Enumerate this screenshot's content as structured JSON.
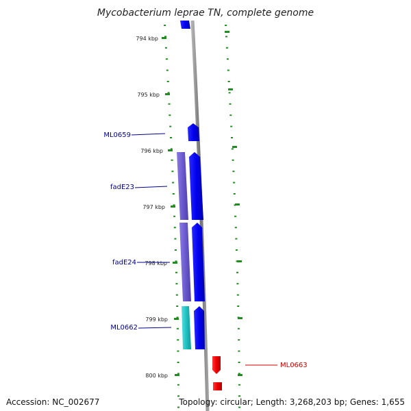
{
  "title": "Mycobacterium leprae TN, complete genome",
  "ticks": [
    "794 kbp",
    "795 kbp",
    "796 kbp",
    "797 kbp",
    "798 kbp",
    "799 kbp",
    "800 kbp"
  ],
  "genes": [
    {
      "name": "ML0659",
      "strand": "forward",
      "color": "#0000ee"
    },
    {
      "name": "fadE23",
      "strand": "forward",
      "color": "#0000ee"
    },
    {
      "name": "fadE24",
      "strand": "forward",
      "color": "#0000ee"
    },
    {
      "name": "ML0662",
      "strand": "forward",
      "color": "#0000ee"
    },
    {
      "name": "ML0663",
      "strand": "reverse",
      "color": "#ee0000"
    }
  ],
  "colors": {
    "forward_cds": "#0000ee",
    "reverse_cds": "#ee0000",
    "orf_purple": "#6a5acd",
    "orf_cyan": "#20c0c0",
    "backbone": "#808080",
    "tick": "#228b22",
    "forward_label": "#00008b",
    "reverse_label": "#cc0000"
  },
  "footer": {
    "accession": "Accession: NC_002677",
    "summary": "Topology: circular; Length: 3,268,203 bp; Genes: 1,655"
  }
}
